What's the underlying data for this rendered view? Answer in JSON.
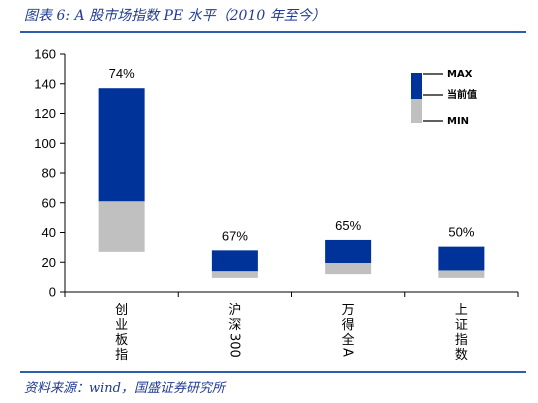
{
  "header": {
    "title": "图表 6:  A 股市场指数 PE 水平（2010 年至今）"
  },
  "footer": {
    "source": "资料来源：wind，国盛证券研究所"
  },
  "chart_data": {
    "type": "bar",
    "stacked_range": true,
    "categories": [
      "创业板指",
      "沪深300",
      "万得全A",
      "上证指数"
    ],
    "min": [
      27,
      9.5,
      12,
      9.5
    ],
    "current": [
      61,
      14,
      19.5,
      14.5
    ],
    "max": [
      137,
      28,
      35,
      30.5
    ],
    "percentile_labels": [
      "74%",
      "67%",
      "65%",
      "50%"
    ],
    "legend": [
      "MAX",
      "当前值",
      "MIN"
    ],
    "legend_placement": "top-right",
    "ylim": [
      0,
      160
    ],
    "yticks": [
      0,
      20,
      40,
      60,
      80,
      100,
      120,
      140,
      160
    ],
    "colors": {
      "upper": "#003399",
      "lower": "#c0c0c0"
    },
    "grid": false
  }
}
